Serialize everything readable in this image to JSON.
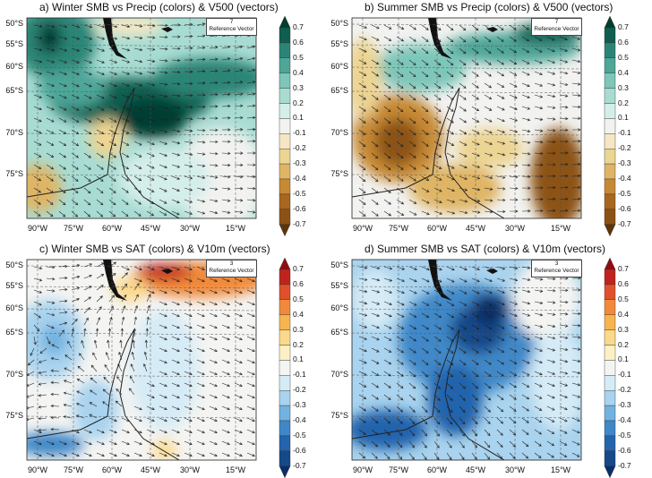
{
  "panels": [
    {
      "id": "a",
      "title": "a) Winter SMB vs Precip (colors) & V500 (vectors)",
      "reference_vector": {
        "value": "7",
        "label": "Reference Vector"
      },
      "palette": "brbg"
    },
    {
      "id": "b",
      "title": "b) Summer SMB vs Precip (colors) & V500 (vectors)",
      "reference_vector": {
        "value": "7",
        "label": "Reference Vector"
      },
      "palette": "brbg"
    },
    {
      "id": "c",
      "title": "c) Winter SMB vs SAT (colors) & V10m (vectors)",
      "reference_vector": {
        "value": "3",
        "label": "Reference Vector"
      },
      "palette": "rdbu"
    },
    {
      "id": "d",
      "title": "d) Summer SMB vs SAT (colors) & V10m (vectors)",
      "reference_vector": {
        "value": "3",
        "label": "Reference Vector"
      },
      "palette": "rdbu"
    }
  ],
  "lat_labels": [
    "50°S",
    "55°S",
    "60°S",
    "65°S",
    "70°S",
    "75°S"
  ],
  "lon_labels": [
    "90°W",
    "75°W",
    "60°W",
    "45°W",
    "30°W",
    "15°W"
  ],
  "colorbar_labels": [
    "0.7",
    "0.6",
    "0.5",
    "0.4",
    "0.3",
    "0.2",
    "0.1",
    "-0.1",
    "-0.2",
    "-0.3",
    "-0.4",
    "-0.5",
    "-0.6",
    "-0.7"
  ],
  "colors": {
    "brbg": [
      "#053c30",
      "#0f5e50",
      "#2b8576",
      "#4ea698",
      "#7dc6b9",
      "#a8dcd3",
      "#d4eeea",
      "#f2f2f0",
      "#f5e7c4",
      "#ecd493",
      "#dfb565",
      "#c78a34",
      "#a8661f",
      "#8c5214",
      "#5e3408"
    ],
    "rdbu": [
      "#8f0d12",
      "#c0231e",
      "#e0502c",
      "#f08a3a",
      "#f7b450",
      "#fbd98a",
      "#fdf0c4",
      "#f4f4f2",
      "#d5ebf6",
      "#a9d3ee",
      "#72b2e0",
      "#3f88c8",
      "#2464ad",
      "#144a8a",
      "#0a2f66"
    ]
  }
}
